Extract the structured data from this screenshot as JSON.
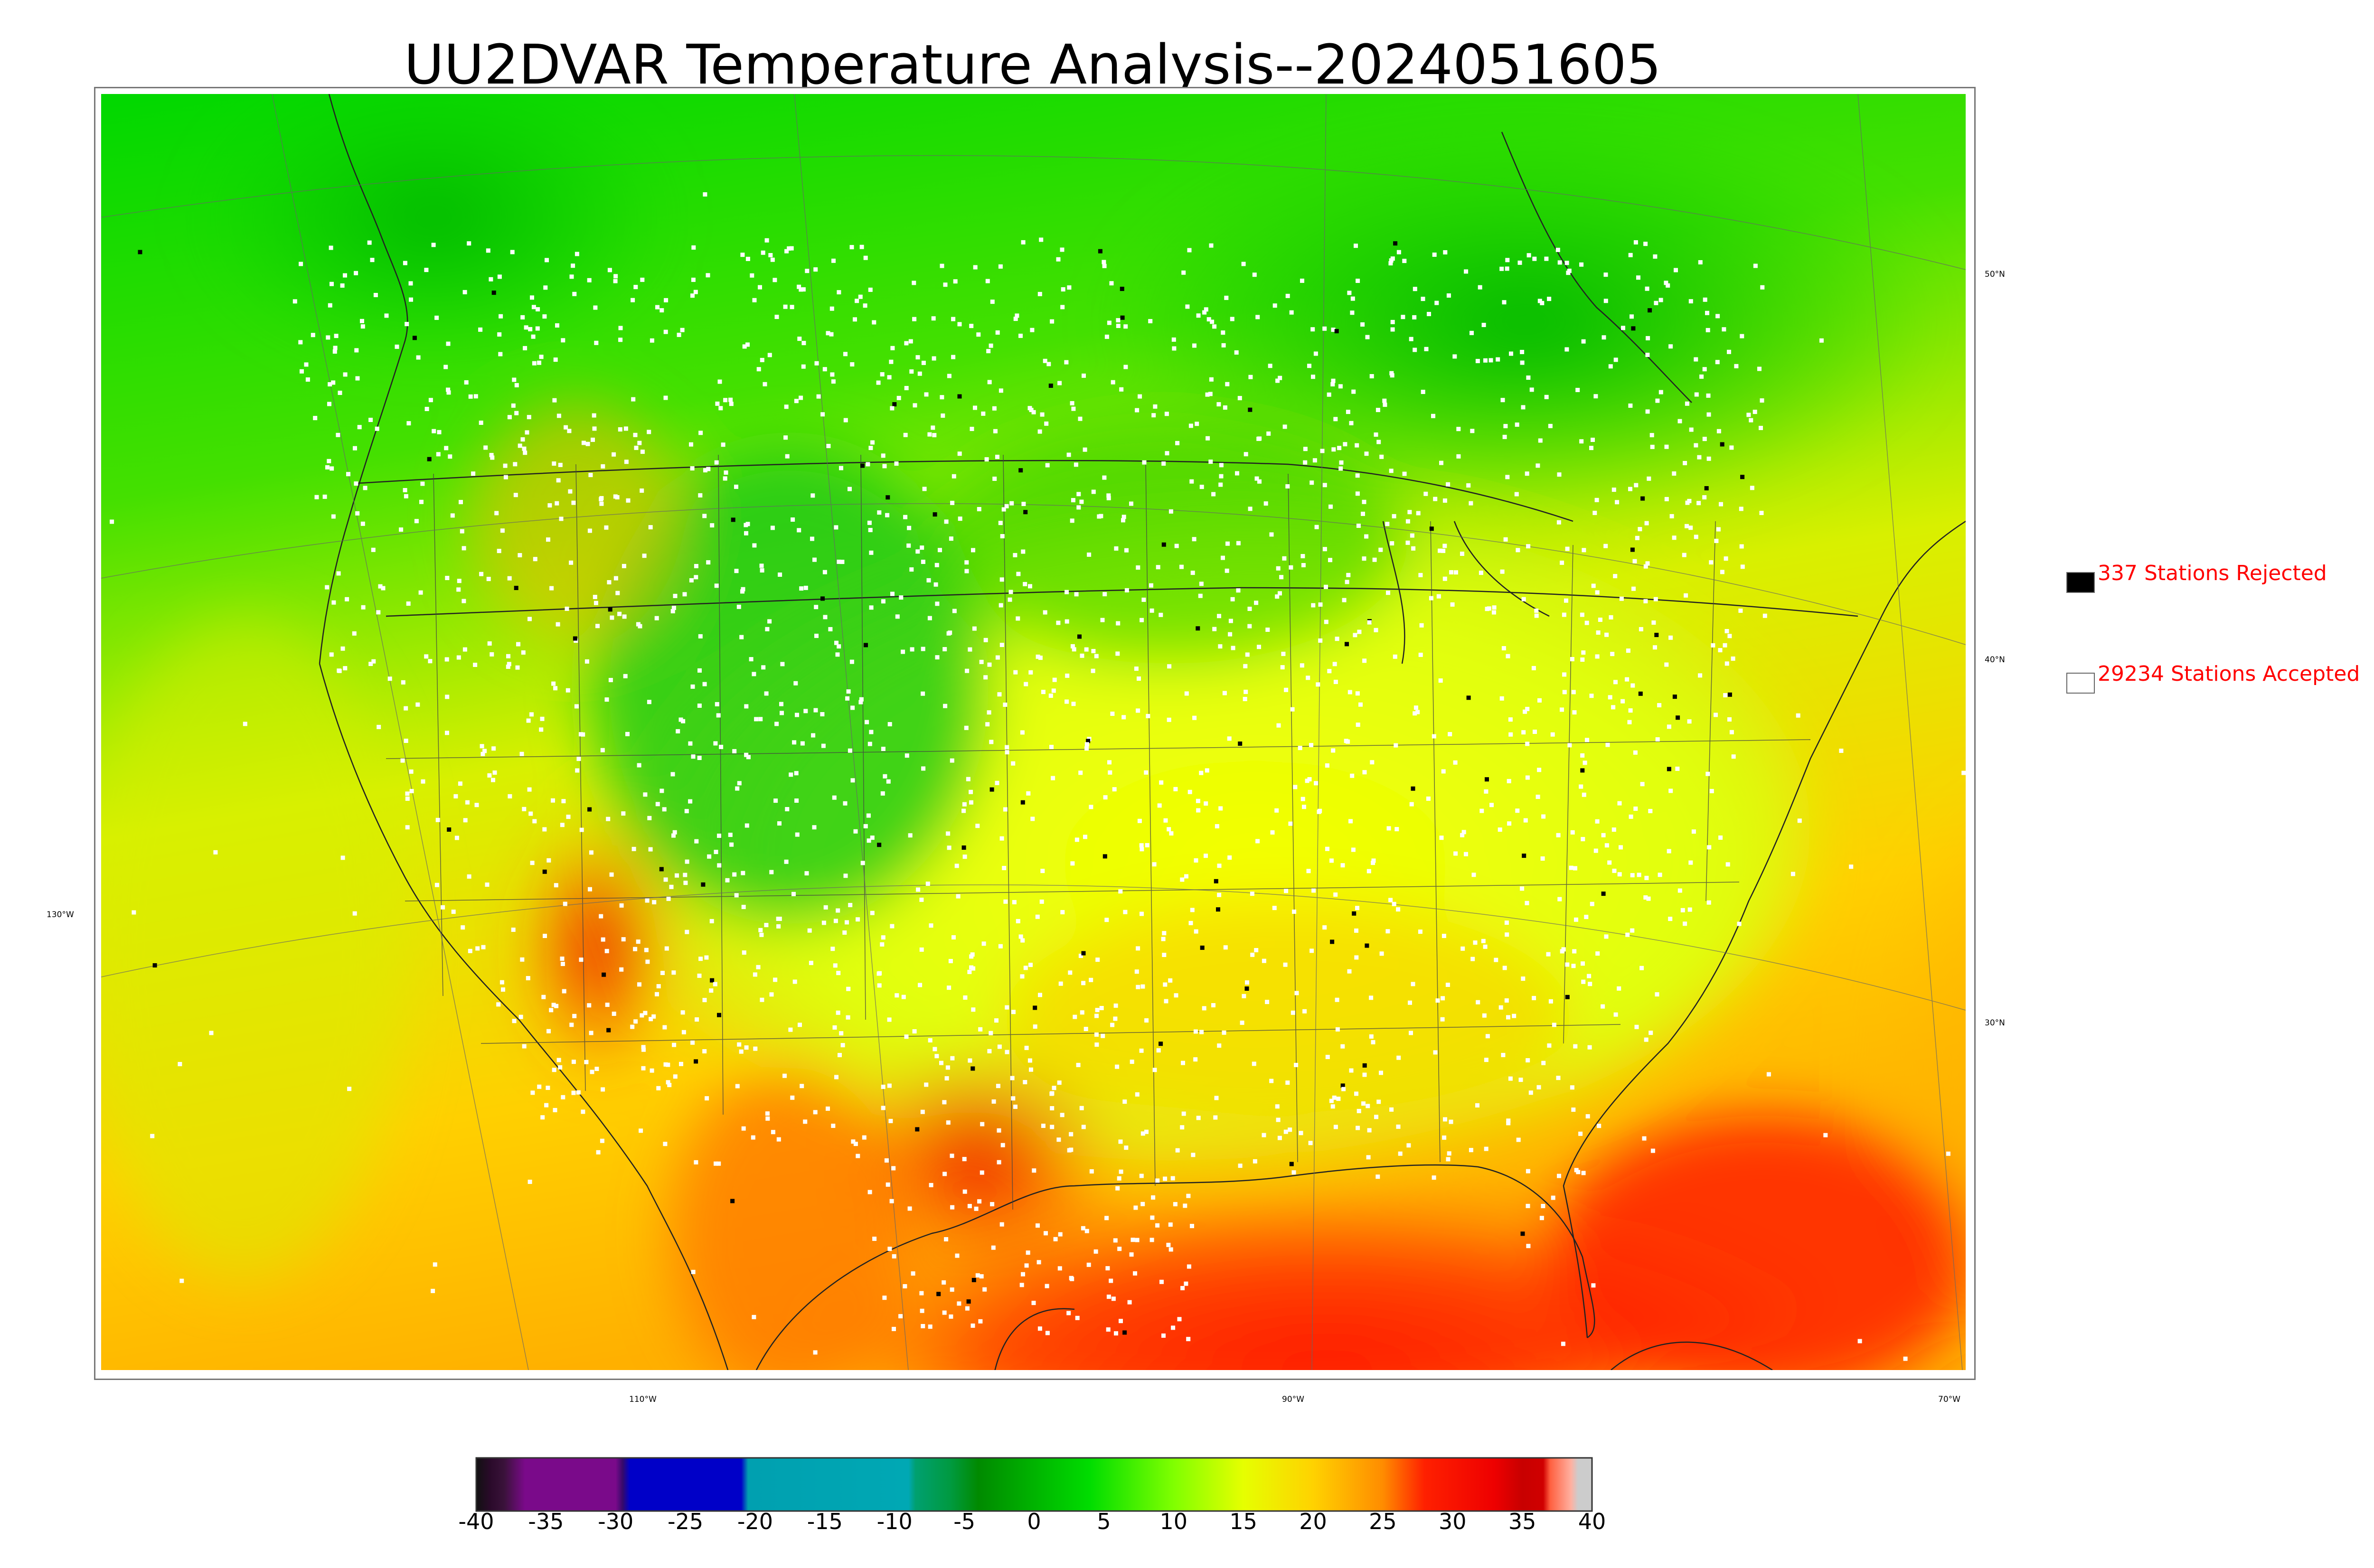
{
  "title": "UU2DVAR Temperature Analysis--2024051605",
  "graticule_labels": {
    "lat": [
      "50°N",
      "40°N",
      "30°N"
    ],
    "lon_left": "130°W",
    "lon_bottom": [
      "110°W",
      "90°W",
      "70°W"
    ]
  },
  "legend": {
    "rejected": {
      "label": "337 Stations Rejected",
      "box_color": "#000000"
    },
    "accepted": {
      "label": "29234 Stations Accepted",
      "box_color": "#ffffff"
    },
    "text_color": "#ff0000"
  },
  "colorbar": {
    "ticks": [
      "-40",
      "-35",
      "-30",
      "-25",
      "-20",
      "-15",
      "-10",
      "-5",
      "0",
      "5",
      "10",
      "15",
      "20",
      "25",
      "30",
      "35",
      "40"
    ],
    "range": [
      -40,
      40
    ],
    "stops": [
      {
        "v": -40,
        "c": "#111111"
      },
      {
        "v": -39,
        "c": "#2a0a2a"
      },
      {
        "v": -38,
        "c": "#3a123a"
      },
      {
        "v": -36.5,
        "c": "#7a0a8a"
      },
      {
        "v": -30,
        "c": "#7a0a8a"
      },
      {
        "v": -29.5,
        "c": "#350a6a"
      },
      {
        "v": -29,
        "c": "#0000c8"
      },
      {
        "v": -21,
        "c": "#0000c8"
      },
      {
        "v": -20.5,
        "c": "#00a0b0"
      },
      {
        "v": -9,
        "c": "#00a8b4"
      },
      {
        "v": -8.5,
        "c": "#00a070"
      },
      {
        "v": -6,
        "c": "#009a40"
      },
      {
        "v": -4,
        "c": "#008a00"
      },
      {
        "v": 4,
        "c": "#00dd00"
      },
      {
        "v": 10,
        "c": "#80ff00"
      },
      {
        "v": 15,
        "c": "#e6ff00"
      },
      {
        "v": 20,
        "c": "#ffd200"
      },
      {
        "v": 25,
        "c": "#ff8c00"
      },
      {
        "v": 28,
        "c": "#ff2000"
      },
      {
        "v": 33,
        "c": "#ee0000"
      },
      {
        "v": 35,
        "c": "#c80000"
      },
      {
        "v": 36.5,
        "c": "#d00000"
      },
      {
        "v": 37,
        "c": "#ff6040"
      },
      {
        "v": 38.5,
        "c": "#ffb0a0"
      },
      {
        "v": 39,
        "c": "#cccccc"
      },
      {
        "v": 40,
        "c": "#cccccc"
      }
    ]
  }
}
